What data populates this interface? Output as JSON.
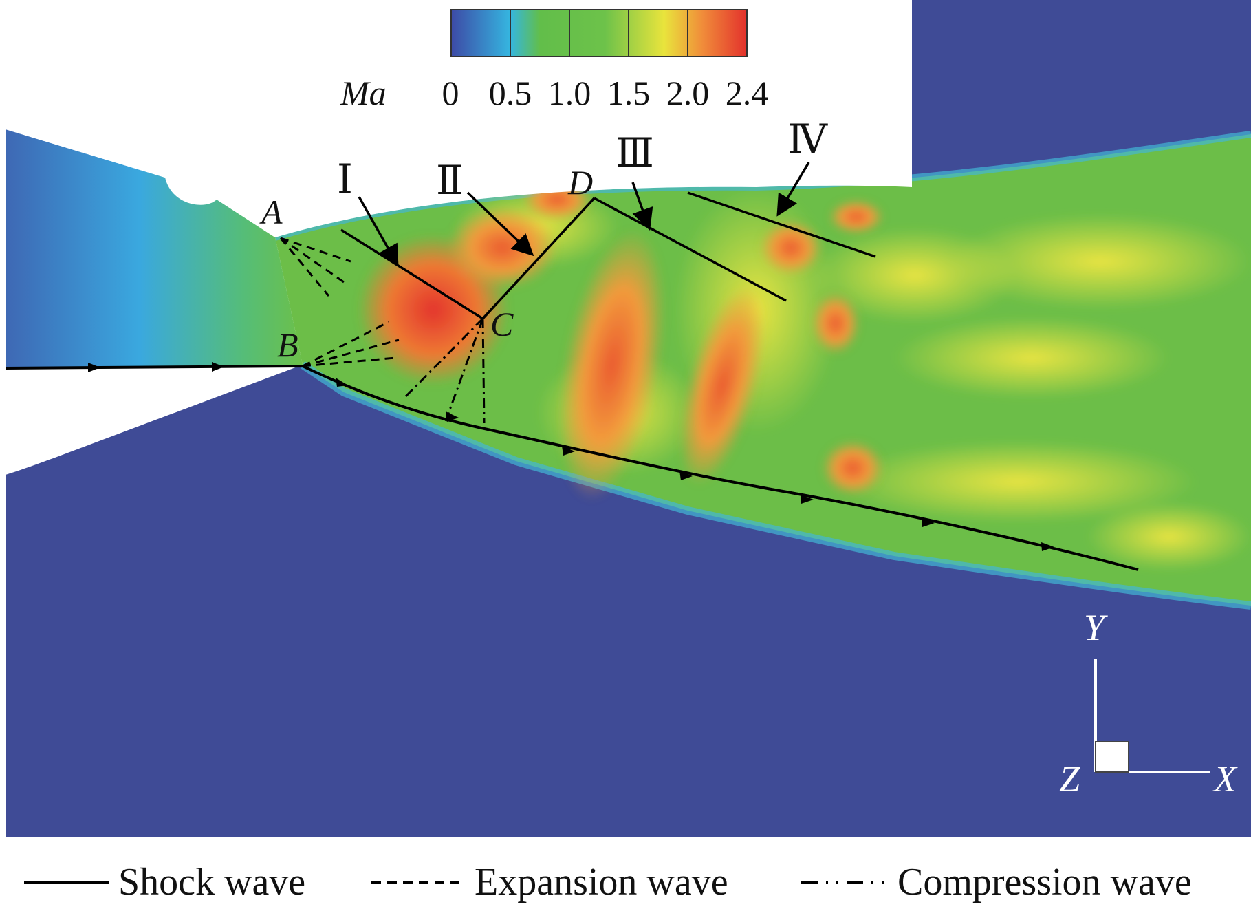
{
  "colorbar": {
    "variable_label": "Ma",
    "ticks": [
      "0",
      "0.5",
      "1.0",
      "1.5",
      "2.0",
      "2.4"
    ],
    "colors": [
      "#3d4aa6",
      "#35b6e0",
      "#62be4a",
      "#e9e43c",
      "#f08c3a",
      "#e3312c"
    ]
  },
  "points": {
    "A": "A",
    "B": "B",
    "C": "C",
    "D": "D"
  },
  "regions": {
    "I": "Ⅰ",
    "II": "Ⅱ",
    "III": "Ⅲ",
    "IV": "Ⅳ"
  },
  "axes": {
    "x": "X",
    "y": "Y",
    "z": "Z"
  },
  "legend": {
    "shock": "Shock wave",
    "expansion": "Expansion wave",
    "compression": "Compression wave"
  }
}
